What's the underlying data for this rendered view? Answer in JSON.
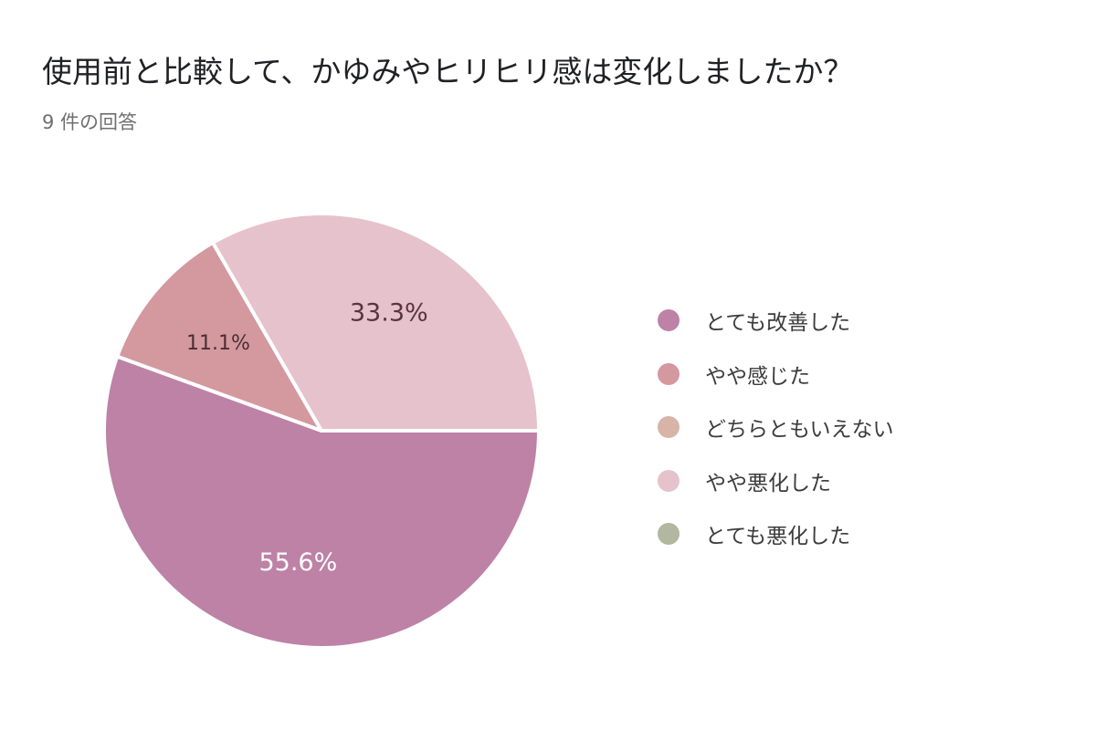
{
  "chart_data": {
    "type": "pie",
    "title": "使用前と比較して、かゆみやヒリヒリ感は変化しましたか？",
    "subtitle": "9 件の回答",
    "legend_position": "right",
    "categories": [
      "とても改善した",
      "やや感じた",
      "どちらともいえない",
      "やや悪化した",
      "とても悪化した"
    ],
    "values": [
      5,
      1,
      0,
      3,
      0
    ],
    "percent_labels": [
      "55.6%",
      "11.1%",
      "",
      "33.3%",
      ""
    ],
    "colors": [
      "#bd82a6",
      "#d4989f",
      "#d8b3a8",
      "#e6c2cc",
      "#b2b79f"
    ],
    "label_colors": [
      "#ffffff",
      "#4a2e36",
      "#4a2e36",
      "#5a3340",
      "#4a2e36"
    ]
  }
}
